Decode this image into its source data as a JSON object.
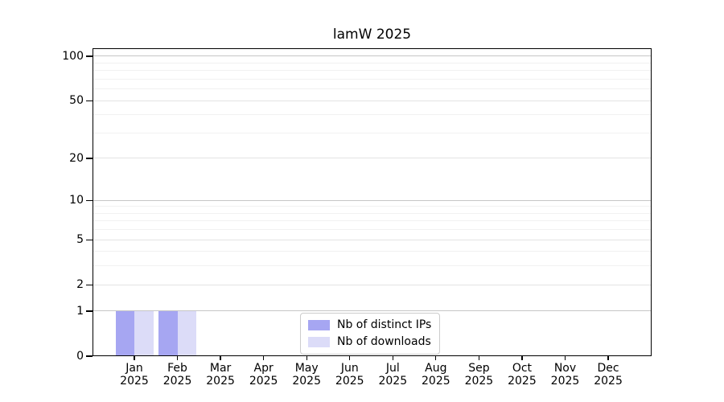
{
  "title": "lamW 2025",
  "legend": {
    "items": [
      {
        "label": "Nb of distinct IPs",
        "color": "#a6a6f2"
      },
      {
        "label": "Nb of downloads",
        "color": "#dcdcf8"
      }
    ]
  },
  "chart_data": {
    "type": "bar",
    "title": "lamW 2025",
    "categories": [
      "Jan 2025",
      "Feb 2025",
      "Mar 2025",
      "Apr 2025",
      "May 2025",
      "Jun 2025",
      "Jul 2025",
      "Aug 2025",
      "Sep 2025",
      "Oct 2025",
      "Nov 2025",
      "Dec 2025"
    ],
    "x_tick_months": [
      "Jan",
      "Feb",
      "Mar",
      "Apr",
      "May",
      "Jun",
      "Jul",
      "Aug",
      "Sep",
      "Oct",
      "Nov",
      "Dec"
    ],
    "x_tick_year": "2025",
    "series": [
      {
        "name": "Nb of distinct IPs",
        "color": "#a6a6f2",
        "values": [
          1,
          1,
          0,
          0,
          0,
          0,
          0,
          0,
          0,
          0,
          0,
          0
        ]
      },
      {
        "name": "Nb of downloads",
        "color": "#dcdcf8",
        "values": [
          1,
          1,
          0,
          0,
          0,
          0,
          0,
          0,
          0,
          0,
          0,
          0
        ]
      }
    ],
    "yscale": "log1p",
    "ylim": [
      0,
      115
    ],
    "ytick_labels": [
      0,
      1,
      2,
      5,
      10,
      20,
      50,
      100
    ],
    "decade_gridlines": [
      1,
      10,
      100
    ],
    "sub_gridlines": [
      2,
      5,
      20,
      50
    ],
    "minor_gridlines": [
      3,
      4,
      6,
      7,
      8,
      9,
      30,
      40,
      60,
      70,
      80,
      90
    ],
    "grid": true,
    "legend_position": "lower center"
  },
  "colors": {
    "decade_grid": "#c6c6c6",
    "sub_grid": "#e3e3e3",
    "minor_grid": "#f1f1f1",
    "spine": "#000000",
    "background": "#ffffff"
  }
}
